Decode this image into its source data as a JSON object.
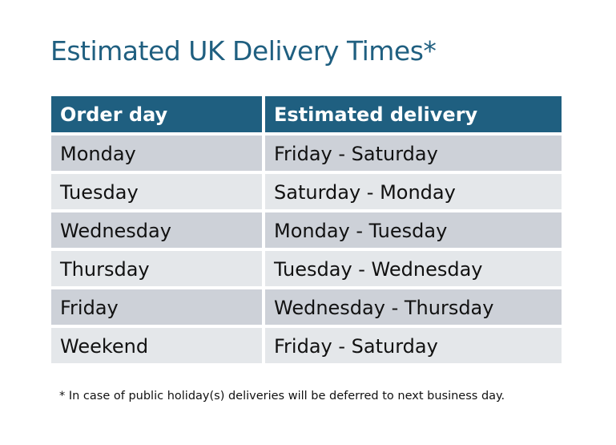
{
  "title": "Estimated UK Delivery Times*",
  "table": {
    "headers": [
      "Order day",
      "Estimated delivery"
    ],
    "rows": [
      [
        "Monday",
        "Friday - Saturday"
      ],
      [
        "Tuesday",
        "Saturday - Monday"
      ],
      [
        "Wednesday",
        "Monday - Tuesday"
      ],
      [
        "Thursday",
        "Tuesday - Wednesday"
      ],
      [
        "Friday",
        "Wednesday - Thursday"
      ],
      [
        "Weekend",
        "Friday - Saturday"
      ]
    ]
  },
  "footnote": "* In case of public holiday(s) deliveries will be deferred to next business day.",
  "colors": {
    "header": "#1f5f80",
    "row_dark": "#cdd1d8",
    "row_light": "#e4e7ea"
  }
}
